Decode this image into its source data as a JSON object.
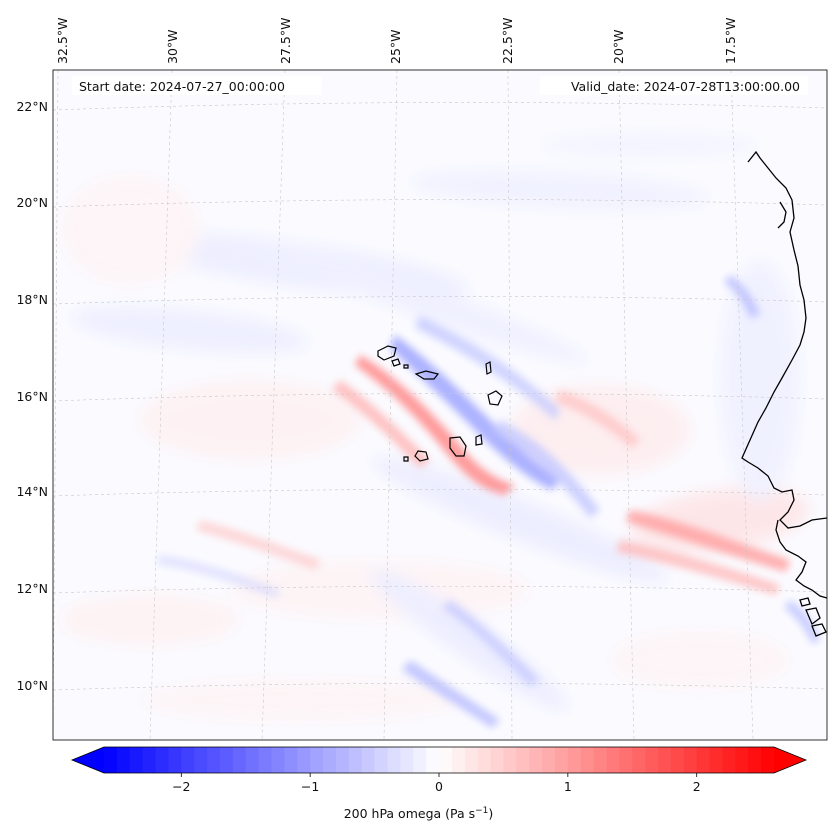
{
  "map": {
    "start_date": "Start date: 2024-07-27_00:00:00",
    "valid_date": "Valid_date: 2024-07-28T13:00:00.00",
    "lon_labels": [
      "32.5°W",
      "30°W",
      "27.5°W",
      "25°W",
      "22.5°W",
      "20°W",
      "17.5°W"
    ],
    "lat_labels": [
      "22°N",
      "20°N",
      "18°N",
      "16°N",
      "14°N",
      "12°N",
      "10°N"
    ],
    "field": "200 hPa omega",
    "colormap": "bwr"
  },
  "colorbar": {
    "label": "200 hPa omega (Pa s",
    "label_exp": "−1",
    "label_close": ")",
    "ticks": [
      "−2",
      "−1",
      "0",
      "1",
      "2"
    ],
    "tick_values": [
      -2,
      -1,
      0,
      1,
      2
    ],
    "vmin": -2.6,
    "vmax": 2.6,
    "extend": "both",
    "colors": {
      "neg": "#0000ff",
      "mid": "#ffffff",
      "pos": "#ff0000"
    }
  }
}
